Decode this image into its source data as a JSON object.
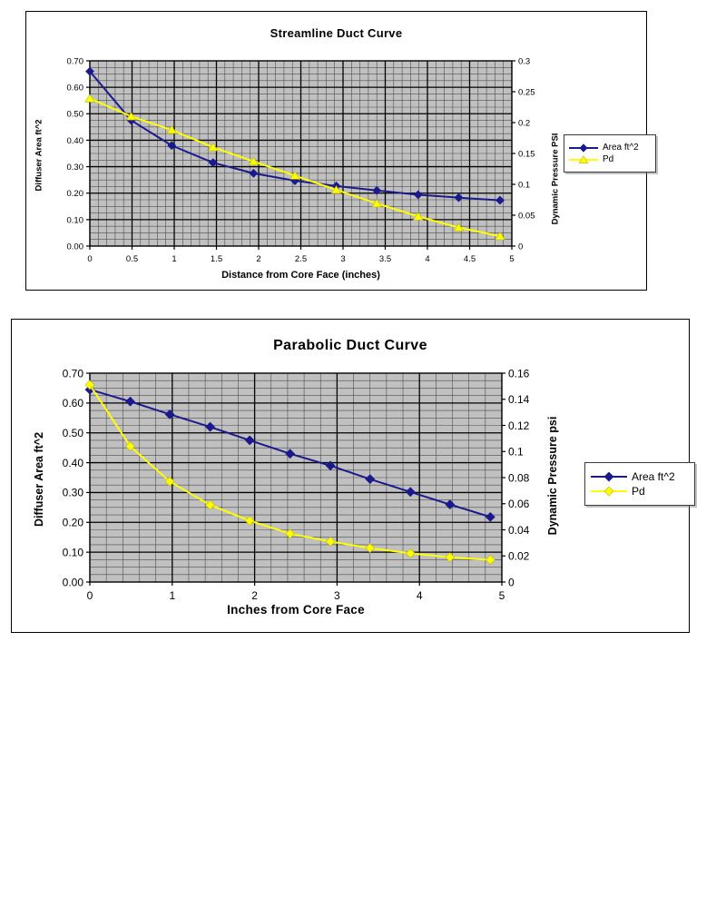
{
  "page": {
    "background": "#ffffff"
  },
  "colors": {
    "plot_background": "#c0c0c0",
    "grid_major": "#000000",
    "grid_minor": "#4d4d4d",
    "area_series": "#1a1a8c",
    "pd_series": "#ffff00"
  },
  "chart_data": [
    {
      "type": "line",
      "title": "Streamline Duct Curve",
      "xlabel": "Distance from Core Face (inches)",
      "ylabel_left": "Diffuser Area ft^2",
      "ylabel_right": "Dynamic Pressure PSI",
      "x_max": 5,
      "x": [
        0,
        0.49,
        0.97,
        1.46,
        1.94,
        2.43,
        2.92,
        3.4,
        3.89,
        4.37,
        4.86
      ],
      "series": [
        {
          "name": "Area ft^2",
          "axis": "left",
          "color": "#1a1a8c",
          "marker": "diamond",
          "values": [
            0.66,
            0.475,
            0.38,
            0.315,
            0.275,
            0.247,
            0.227,
            0.21,
            0.194,
            0.183,
            0.173
          ]
        },
        {
          "name": "Pd",
          "axis": "right",
          "color": "#ffff00",
          "marker": "triangle",
          "values": [
            0.239,
            0.21,
            0.188,
            0.16,
            0.137,
            0.114,
            0.091,
            0.069,
            0.048,
            0.03,
            0.016
          ]
        }
      ],
      "x_ticks": {
        "values": [
          0,
          0.5,
          1,
          1.5,
          2,
          2.5,
          3,
          3.5,
          4,
          4.5,
          5
        ],
        "labels": [
          "0",
          "0.5",
          "1",
          "1.5",
          "2",
          "2.5",
          "3",
          "3.5",
          "4",
          "4.5",
          "5"
        ]
      },
      "y_left": {
        "min": 0,
        "max": 0.7,
        "tick_values": [
          0,
          0.1,
          0.2,
          0.3,
          0.4,
          0.5,
          0.6,
          0.7
        ],
        "tick_labels": [
          "0.00",
          "0.10",
          "0.20",
          "0.30",
          "0.40",
          "0.50",
          "0.60",
          "0.70"
        ]
      },
      "y_right": {
        "min": 0,
        "max": 0.3,
        "tick_values": [
          0,
          0.05,
          0.1,
          0.15,
          0.2,
          0.25,
          0.3
        ],
        "tick_labels": [
          "0",
          "0.05",
          "0.1",
          "0.15",
          "0.2",
          "0.25",
          "0.3"
        ]
      },
      "grid": {
        "x_minor": 0.1,
        "x_major": 0.5,
        "y_minor": 0.025,
        "y_major": 0.1,
        "grid_on": true
      },
      "legend_position": "right"
    },
    {
      "type": "line",
      "title": "Parabolic Duct Curve",
      "xlabel": "Inches from Core Face",
      "ylabel_left": "Diffuser Area ft^2",
      "ylabel_right": "Dynamic Pressure psi",
      "x_max": 5,
      "x": [
        0,
        0.49,
        0.97,
        1.46,
        1.94,
        2.43,
        2.92,
        3.4,
        3.89,
        4.37,
        4.86
      ],
      "series": [
        {
          "name": "Area ft^2",
          "axis": "left",
          "color": "#1a1a8c",
          "marker": "diamond",
          "values": [
            0.645,
            0.605,
            0.562,
            0.52,
            0.475,
            0.43,
            0.39,
            0.345,
            0.302,
            0.26,
            0.218
          ]
        },
        {
          "name": "Pd",
          "axis": "right",
          "color": "#ffff00",
          "marker": "diamond",
          "values": [
            0.151,
            0.104,
            0.077,
            0.059,
            0.047,
            0.037,
            0.031,
            0.026,
            0.022,
            0.019,
            0.017
          ]
        }
      ],
      "x_ticks": {
        "values": [
          0,
          1,
          2,
          3,
          4,
          5
        ],
        "labels": [
          "0",
          "1",
          "2",
          "3",
          "4",
          "5"
        ]
      },
      "y_left": {
        "min": 0,
        "max": 0.7,
        "tick_values": [
          0,
          0.1,
          0.2,
          0.3,
          0.4,
          0.5,
          0.6,
          0.7
        ],
        "tick_labels": [
          "0.00",
          "0.10",
          "0.20",
          "0.30",
          "0.40",
          "0.50",
          "0.60",
          "0.70"
        ]
      },
      "y_right": {
        "min": 0,
        "max": 0.16,
        "tick_values": [
          0,
          0.02,
          0.04,
          0.06,
          0.08,
          0.1,
          0.12,
          0.14,
          0.16
        ],
        "tick_labels": [
          "0",
          "0.02",
          "0.04",
          "0.06",
          "0.08",
          "0.1",
          "0.12",
          "0.14",
          "0.16"
        ]
      },
      "grid": {
        "x_minor": 0.2,
        "x_major": 1,
        "y_minor": 0.025,
        "y_major": 0.1,
        "grid_on": true
      },
      "legend_position": "right"
    }
  ]
}
